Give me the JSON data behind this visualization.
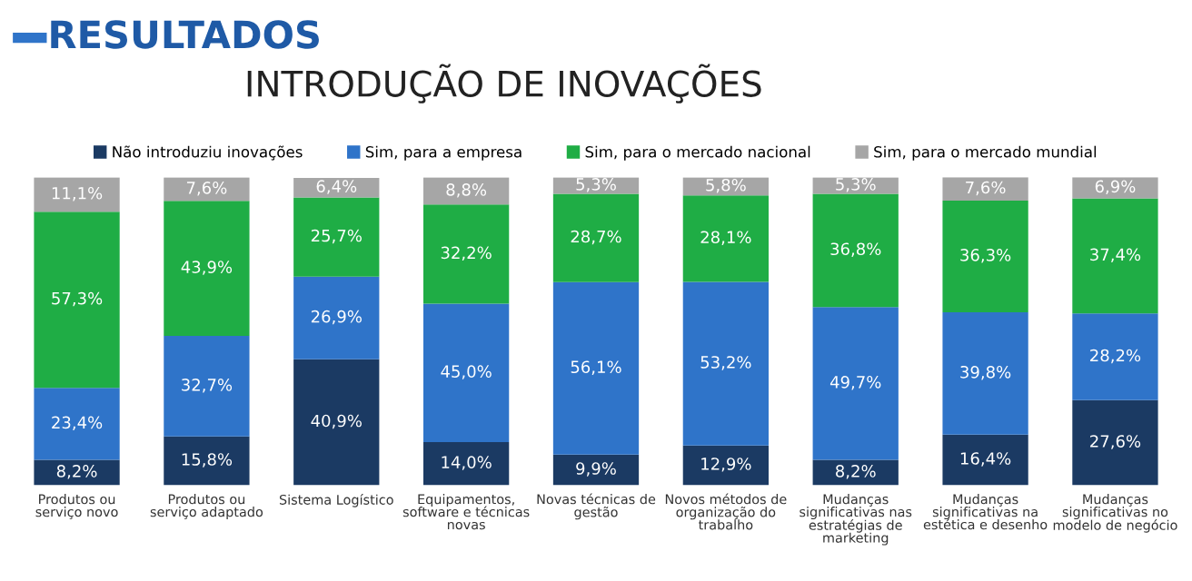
{
  "chart_data": {
    "type": "bar",
    "stacked": true,
    "title": "RESULTADOS",
    "subtitle": "INTRODUÇÃO DE INOVAÇÕES",
    "categories": [
      "Produtos ou\nserviço novo",
      "Produtos ou\nserviço adaptado",
      "Sistema Logístico",
      "Equipamentos,\nsoftware e técnicas\nnovas",
      "Novas técnicas de\ngestão",
      "Novos métodos de\norganização do\ntrabalho",
      "Mudanças\nsignificativas nas\nestratégias de\nmarketing",
      "Mudanças\nsignificativas na\nestética e desenho",
      "Mudanças\nsignificativas no\nmodelo de negócio"
    ],
    "series": [
      {
        "name": "Não introduziu inovações",
        "color": "#1b3a63",
        "values": [
          8.2,
          15.8,
          40.9,
          14.0,
          9.9,
          12.9,
          8.2,
          16.4,
          27.6
        ],
        "value_labels": [
          "8,2%",
          "15,8%",
          "40,9%",
          "14,0%",
          "9,9%",
          "12,9%",
          "8,2%",
          "16,4%",
          "27,6%"
        ]
      },
      {
        "name": "Sim, para a empresa",
        "color": "#2f74c9",
        "values": [
          23.4,
          32.7,
          26.9,
          45.0,
          56.1,
          53.2,
          49.7,
          39.8,
          28.2
        ],
        "value_labels": [
          "23,4%",
          "32,7%",
          "26,9%",
          "45,0%",
          "56,1%",
          "53,2%",
          "49,7%",
          "39,8%",
          "28,2%"
        ]
      },
      {
        "name": "Sim, para o mercado nacional",
        "color": "#1fad45",
        "values": [
          57.3,
          43.9,
          25.7,
          32.2,
          28.7,
          28.1,
          36.8,
          36.3,
          37.4
        ],
        "value_labels": [
          "57,3%",
          "43,9%",
          "25,7%",
          "32,2%",
          "28,7%",
          "28,1%",
          "36,8%",
          "36,3%",
          "37,4%"
        ]
      },
      {
        "name": "Sim, para o mercado mundial",
        "color": "#a6a6a6",
        "values": [
          11.1,
          7.6,
          6.4,
          8.8,
          5.3,
          5.8,
          5.3,
          7.6,
          6.9
        ],
        "value_labels": [
          "11,1%",
          "7,6%",
          "6,4%",
          "8,8%",
          "5,3%",
          "5,8%",
          "5,3%",
          "7,6%",
          "6,9%"
        ]
      }
    ],
    "legend": "top",
    "tick_labels": "x",
    "grid": false
  }
}
